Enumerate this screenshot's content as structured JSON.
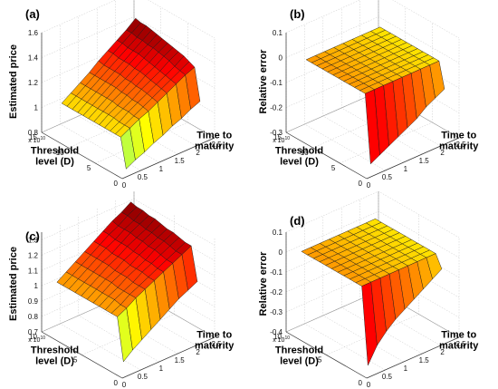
{
  "chart_data": [
    {
      "type": "surface",
      "panel_label": "(a)",
      "colormap": "jet",
      "xlabel": "Time to maturity",
      "ylabel": "Threshold level (D)",
      "zlabel": "Estimated price",
      "x_ticks": [
        "0",
        "0.5",
        "1",
        "1.5",
        "2",
        "2.5"
      ],
      "y_ticks": [
        "0",
        "5",
        "10",
        "15"
      ],
      "y_exponent": "x 10",
      "y_exponent_power": "10",
      "z_ticks": [
        "0.8",
        "1",
        "1.2",
        "1.4",
        "1.6"
      ],
      "xlim": [
        0,
        2.5
      ],
      "ylim": [
        0,
        15
      ],
      "zlim": [
        0.8,
        1.6
      ],
      "grid": true,
      "surface": {
        "x": [
          0.25,
          0.5,
          0.75,
          1,
          1.25,
          1.5,
          1.75,
          2,
          2.25
        ],
        "y": [
          1,
          2,
          3,
          4,
          5,
          6,
          7,
          8,
          9,
          10,
          11,
          12,
          13
        ],
        "low_y_drop_rows": 1,
        "values": [
          [
            0.82,
            0.86,
            0.89,
            0.93,
            0.96,
            1.0,
            1.03,
            1.07,
            1.1
          ],
          [
            1.05,
            1.09,
            1.13,
            1.16,
            1.2,
            1.24,
            1.28,
            1.32,
            1.35
          ],
          [
            1.05,
            1.09,
            1.13,
            1.17,
            1.21,
            1.25,
            1.29,
            1.33,
            1.37
          ],
          [
            1.05,
            1.09,
            1.14,
            1.18,
            1.22,
            1.26,
            1.3,
            1.34,
            1.39
          ],
          [
            1.05,
            1.1,
            1.14,
            1.18,
            1.23,
            1.27,
            1.31,
            1.36,
            1.4
          ],
          [
            1.05,
            1.1,
            1.14,
            1.19,
            1.23,
            1.28,
            1.32,
            1.37,
            1.41
          ],
          [
            1.05,
            1.1,
            1.15,
            1.19,
            1.24,
            1.29,
            1.33,
            1.38,
            1.42
          ],
          [
            1.05,
            1.1,
            1.15,
            1.2,
            1.24,
            1.29,
            1.34,
            1.39,
            1.43
          ],
          [
            1.05,
            1.1,
            1.15,
            1.2,
            1.25,
            1.3,
            1.35,
            1.39,
            1.44
          ],
          [
            1.05,
            1.1,
            1.15,
            1.2,
            1.25,
            1.3,
            1.35,
            1.4,
            1.45
          ],
          [
            1.05,
            1.1,
            1.15,
            1.2,
            1.25,
            1.3,
            1.35,
            1.4,
            1.46
          ],
          [
            1.05,
            1.1,
            1.15,
            1.2,
            1.25,
            1.31,
            1.36,
            1.41,
            1.46
          ],
          [
            1.05,
            1.1,
            1.15,
            1.2,
            1.26,
            1.31,
            1.36,
            1.41,
            1.47
          ]
        ]
      }
    },
    {
      "type": "surface",
      "panel_label": "(b)",
      "colormap": "hot",
      "xlabel": "Time to maturity",
      "ylabel": "Threshold level (D)",
      "zlabel": "Relative error",
      "x_ticks": [
        "0",
        "0.5",
        "1",
        "1.5",
        "2",
        "2.5"
      ],
      "y_ticks": [
        "0",
        "5",
        "10",
        "15"
      ],
      "y_exponent": "x 10",
      "y_exponent_power": "10",
      "z_ticks": [
        "-0.3",
        "-0.2",
        "-0.1",
        "0",
        "0.1"
      ],
      "xlim": [
        0,
        2.5
      ],
      "ylim": [
        0,
        15
      ],
      "zlim": [
        -0.3,
        0.1
      ],
      "grid": true,
      "surface": {
        "x": [
          0.25,
          0.5,
          0.75,
          1,
          1.25,
          1.5,
          1.75,
          2,
          2.25
        ],
        "y": [
          1,
          2,
          3,
          4,
          5,
          6,
          7,
          8,
          9,
          10,
          11,
          12,
          13
        ],
        "values": [
          [
            -0.27,
            -0.25,
            -0.23,
            -0.21,
            -0.19,
            -0.17,
            -0.14,
            -0.12,
            -0.1
          ],
          [
            0,
            0,
            0,
            0,
            0,
            0,
            0,
            0,
            0
          ],
          [
            0,
            0,
            0,
            0,
            0,
            0,
            0,
            0,
            0
          ],
          [
            0,
            0,
            0,
            0,
            0,
            0,
            0,
            0,
            0
          ],
          [
            0,
            0,
            0,
            0,
            0,
            0,
            0,
            0,
            0
          ],
          [
            0,
            0,
            0,
            0,
            0,
            0,
            0,
            0,
            0
          ],
          [
            0,
            0,
            0,
            0,
            0,
            0,
            0,
            0,
            0
          ],
          [
            0,
            0,
            0,
            0,
            0,
            0,
            0,
            0,
            0
          ],
          [
            0,
            0,
            0,
            0,
            0,
            0,
            0,
            0,
            0
          ],
          [
            0,
            0,
            0,
            0,
            0,
            0,
            0,
            0,
            0
          ],
          [
            0,
            0,
            0,
            0,
            0,
            0,
            0,
            0,
            0
          ],
          [
            0,
            0,
            0,
            0,
            0,
            0,
            0,
            0,
            0
          ],
          [
            0,
            0,
            0,
            0,
            0,
            0,
            0,
            0,
            0
          ]
        ]
      }
    },
    {
      "type": "surface",
      "panel_label": "(c)",
      "colormap": "jet",
      "xlabel": "Time to maturity",
      "ylabel": "Threshold level (D)",
      "zlabel": "Estimated price",
      "x_ticks": [
        "0",
        "0.5",
        "1",
        "1.5",
        "2",
        "2.5"
      ],
      "y_ticks": [
        "0",
        "5",
        "10"
      ],
      "y_exponent": "x 10",
      "y_exponent_power": "10",
      "z_ticks": [
        "0.7",
        "0.8",
        "0.9",
        "1",
        "1.1",
        "1.2",
        "1.3"
      ],
      "xlim": [
        0,
        2.5
      ],
      "ylim": [
        0,
        10
      ],
      "zlim": [
        0.7,
        1.35
      ],
      "grid": true,
      "surface": {
        "x": [
          0.25,
          0.5,
          0.75,
          1,
          1.25,
          1.5,
          1.75,
          2,
          2.25
        ],
        "y": [
          1,
          1.75,
          2.5,
          3.25,
          4,
          4.75,
          5.5,
          6.25,
          7,
          7.75,
          8.5,
          9.25
        ],
        "values": [
          [
            0.75,
            0.8,
            0.84,
            0.88,
            0.92,
            0.96,
            1.0,
            1.03,
            1.06
          ],
          [
            1.02,
            1.05,
            1.09,
            1.12,
            1.15,
            1.18,
            1.21,
            1.24,
            1.27
          ],
          [
            1.02,
            1.05,
            1.09,
            1.12,
            1.15,
            1.18,
            1.21,
            1.24,
            1.27
          ],
          [
            1.02,
            1.06,
            1.09,
            1.12,
            1.16,
            1.19,
            1.22,
            1.25,
            1.28
          ],
          [
            1.02,
            1.06,
            1.09,
            1.13,
            1.16,
            1.19,
            1.23,
            1.26,
            1.29
          ],
          [
            1.02,
            1.06,
            1.1,
            1.13,
            1.16,
            1.2,
            1.23,
            1.26,
            1.29
          ],
          [
            1.02,
            1.06,
            1.1,
            1.13,
            1.17,
            1.2,
            1.24,
            1.27,
            1.3
          ],
          [
            1.02,
            1.06,
            1.1,
            1.14,
            1.17,
            1.21,
            1.24,
            1.27,
            1.31
          ],
          [
            1.02,
            1.06,
            1.1,
            1.14,
            1.17,
            1.21,
            1.25,
            1.28,
            1.31
          ],
          [
            1.02,
            1.06,
            1.1,
            1.14,
            1.18,
            1.21,
            1.25,
            1.28,
            1.32
          ],
          [
            1.02,
            1.06,
            1.1,
            1.14,
            1.18,
            1.22,
            1.25,
            1.29,
            1.32
          ],
          [
            1.02,
            1.06,
            1.1,
            1.14,
            1.18,
            1.22,
            1.26,
            1.29,
            1.33
          ]
        ]
      }
    },
    {
      "type": "surface",
      "panel_label": "(d)",
      "colormap": "hot",
      "xlabel": "Time to maturity",
      "ylabel": "Threshold level (D)",
      "zlabel": "Relative error",
      "x_ticks": [
        "0",
        "0.5",
        "1",
        "1.5",
        "2",
        "2.5"
      ],
      "y_ticks": [
        "0",
        "5",
        "10"
      ],
      "y_exponent": "x 10",
      "y_exponent_power": "10",
      "z_ticks": [
        "-0.4",
        "-0.3",
        "-0.2",
        "-0.1",
        "0",
        "0.1"
      ],
      "xlim": [
        0,
        2.5
      ],
      "ylim": [
        0,
        10
      ],
      "zlim": [
        -0.4,
        0.1
      ],
      "grid": true,
      "surface": {
        "x": [
          0.25,
          0.5,
          0.75,
          1,
          1.25,
          1.5,
          1.75,
          2,
          2.25
        ],
        "y": [
          1,
          1.75,
          2.5,
          3.25,
          4,
          4.75,
          5.5,
          6.25,
          7,
          7.75,
          8.5,
          9.25
        ],
        "values": [
          [
            -0.38,
            -0.3,
            -0.25,
            -0.21,
            -0.18,
            -0.15,
            -0.12,
            -0.09,
            -0.06
          ],
          [
            0,
            0,
            0,
            0,
            0,
            0,
            0,
            0,
            0
          ],
          [
            0,
            0,
            0,
            0,
            0,
            0,
            0,
            0,
            0
          ],
          [
            0,
            0,
            0,
            0,
            0,
            0,
            0,
            0,
            0
          ],
          [
            0,
            0,
            0,
            0,
            0,
            0,
            0,
            0,
            0
          ],
          [
            0,
            0,
            0,
            0,
            0,
            0,
            0,
            0,
            0
          ],
          [
            0,
            0,
            0,
            0,
            0,
            0,
            0,
            0,
            0
          ],
          [
            0,
            0,
            0,
            0,
            0,
            0,
            0,
            0,
            0
          ],
          [
            0,
            0,
            0,
            0,
            0,
            0,
            0,
            0,
            0
          ],
          [
            0,
            0,
            0,
            0,
            0,
            0,
            0,
            0,
            0
          ],
          [
            0,
            0,
            0,
            0,
            0,
            0,
            0,
            0,
            0
          ],
          [
            0,
            0,
            0,
            0,
            0,
            0,
            0,
            0,
            0
          ]
        ]
      }
    }
  ]
}
